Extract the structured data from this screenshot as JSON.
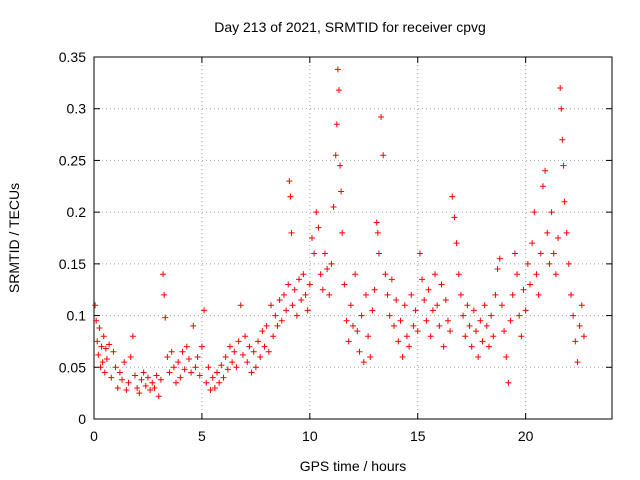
{
  "chart_data": {
    "type": "scatter",
    "title": "Day 213 of 2021, SRMTID for receiver cpvg",
    "xlabel": "GPS time / hours",
    "ylabel": "SRMTID / TECUs",
    "xlim": [
      0,
      24
    ],
    "ylim": [
      0,
      0.35
    ],
    "xticks": [
      0,
      5,
      10,
      15,
      20
    ],
    "xtick_labels": [
      "0",
      "5",
      "10",
      "15",
      "20"
    ],
    "yticks": [
      0,
      0.05,
      0.1,
      0.15,
      0.2,
      0.25,
      0.3,
      0.35
    ],
    "ytick_labels": [
      "0",
      "0.05",
      "0.1",
      "0.15",
      "0.2",
      "0.25",
      "0.3",
      "0.35"
    ],
    "grid": true,
    "marker": "plus",
    "color": "#ff0000",
    "series": [
      {
        "name": "SRMTID",
        "points": [
          [
            0.05,
            0.11
          ],
          [
            0.1,
            0.095
          ],
          [
            0.15,
            0.075
          ],
          [
            0.2,
            0.062
          ],
          [
            0.25,
            0.088
          ],
          [
            0.3,
            0.05
          ],
          [
            0.35,
            0.07
          ],
          [
            0.4,
            0.055
          ],
          [
            0.45,
            0.08
          ],
          [
            0.5,
            0.045
          ],
          [
            0.55,
            0.068
          ],
          [
            0.6,
            0.058
          ],
          [
            0.7,
            0.072
          ],
          [
            0.8,
            0.04
          ],
          [
            0.9,
            0.065
          ],
          [
            1.0,
            0.05
          ],
          [
            1.1,
            0.03
          ],
          [
            1.2,
            0.045
          ],
          [
            1.3,
            0.038
          ],
          [
            1.4,
            0.055
          ],
          [
            1.5,
            0.028
          ],
          [
            1.6,
            0.035
          ],
          [
            1.7,
            0.06
          ],
          [
            1.8,
            0.08
          ],
          [
            1.9,
            0.042
          ],
          [
            2.0,
            0.03
          ],
          [
            2.1,
            0.025
          ],
          [
            2.2,
            0.038
          ],
          [
            2.3,
            0.045
          ],
          [
            2.4,
            0.032
          ],
          [
            2.5,
            0.04
          ],
          [
            2.6,
            0.028
          ],
          [
            2.7,
            0.035
          ],
          [
            2.8,
            0.03
          ],
          [
            2.9,
            0.042
          ],
          [
            3.0,
            0.022
          ],
          [
            3.1,
            0.038
          ],
          [
            3.2,
            0.14
          ],
          [
            3.25,
            0.12
          ],
          [
            3.3,
            0.098
          ],
          [
            3.4,
            0.06
          ],
          [
            3.5,
            0.045
          ],
          [
            3.6,
            0.065
          ],
          [
            3.7,
            0.05
          ],
          [
            3.8,
            0.035
          ],
          [
            3.9,
            0.055
          ],
          [
            4.0,
            0.04
          ],
          [
            4.1,
            0.065
          ],
          [
            4.2,
            0.048
          ],
          [
            4.3,
            0.07
          ],
          [
            4.4,
            0.058
          ],
          [
            4.5,
            0.045
          ],
          [
            4.6,
            0.09
          ],
          [
            4.7,
            0.05
          ],
          [
            4.8,
            0.06
          ],
          [
            4.9,
            0.042
          ],
          [
            5.0,
            0.07
          ],
          [
            5.1,
            0.105
          ],
          [
            5.2,
            0.035
          ],
          [
            5.3,
            0.05
          ],
          [
            5.4,
            0.028
          ],
          [
            5.5,
            0.04
          ],
          [
            5.6,
            0.03
          ],
          [
            5.7,
            0.045
          ],
          [
            5.8,
            0.035
          ],
          [
            5.9,
            0.052
          ],
          [
            6.0,
            0.04
          ],
          [
            6.1,
            0.06
          ],
          [
            6.2,
            0.048
          ],
          [
            6.3,
            0.07
          ],
          [
            6.4,
            0.055
          ],
          [
            6.5,
            0.065
          ],
          [
            6.6,
            0.05
          ],
          [
            6.7,
            0.075
          ],
          [
            6.8,
            0.11
          ],
          [
            6.9,
            0.062
          ],
          [
            7.0,
            0.08
          ],
          [
            7.1,
            0.055
          ],
          [
            7.2,
            0.07
          ],
          [
            7.3,
            0.045
          ],
          [
            7.4,
            0.065
          ],
          [
            7.5,
            0.05
          ],
          [
            7.6,
            0.075
          ],
          [
            7.7,
            0.06
          ],
          [
            7.8,
            0.085
          ],
          [
            7.9,
            0.07
          ],
          [
            8.0,
            0.09
          ],
          [
            8.1,
            0.065
          ],
          [
            8.2,
            0.11
          ],
          [
            8.3,
            0.08
          ],
          [
            8.4,
            0.1
          ],
          [
            8.5,
            0.09
          ],
          [
            8.6,
            0.115
          ],
          [
            8.7,
            0.095
          ],
          [
            8.8,
            0.12
          ],
          [
            8.9,
            0.105
          ],
          [
            9.0,
            0.13
          ],
          [
            9.05,
            0.23
          ],
          [
            9.1,
            0.215
          ],
          [
            9.15,
            0.18
          ],
          [
            9.2,
            0.11
          ],
          [
            9.3,
            0.125
          ],
          [
            9.4,
            0.1
          ],
          [
            9.5,
            0.135
          ],
          [
            9.6,
            0.115
          ],
          [
            9.7,
            0.14
          ],
          [
            9.8,
            0.12
          ],
          [
            9.9,
            0.105
          ],
          [
            10.0,
            0.13
          ],
          [
            10.1,
            0.175
          ],
          [
            10.2,
            0.16
          ],
          [
            10.3,
            0.2
          ],
          [
            10.4,
            0.185
          ],
          [
            10.5,
            0.14
          ],
          [
            10.6,
            0.125
          ],
          [
            10.7,
            0.16
          ],
          [
            10.8,
            0.145
          ],
          [
            10.9,
            0.12
          ],
          [
            11.0,
            0.15
          ],
          [
            11.1,
            0.205
          ],
          [
            11.2,
            0.255
          ],
          [
            11.25,
            0.285
          ],
          [
            11.3,
            0.338
          ],
          [
            11.35,
            0.318
          ],
          [
            11.4,
            0.245
          ],
          [
            11.45,
            0.22
          ],
          [
            11.5,
            0.18
          ],
          [
            11.6,
            0.13
          ],
          [
            11.7,
            0.095
          ],
          [
            11.8,
            0.075
          ],
          [
            11.9,
            0.11
          ],
          [
            12.0,
            0.09
          ],
          [
            12.1,
            0.14
          ],
          [
            12.2,
            0.085
          ],
          [
            12.3,
            0.065
          ],
          [
            12.4,
            0.1
          ],
          [
            12.5,
            0.055
          ],
          [
            12.6,
            0.12
          ],
          [
            12.7,
            0.08
          ],
          [
            12.8,
            0.06
          ],
          [
            12.9,
            0.105
          ],
          [
            13.0,
            0.125
          ],
          [
            13.1,
            0.19
          ],
          [
            13.15,
            0.18
          ],
          [
            13.2,
            0.16
          ],
          [
            13.3,
            0.292
          ],
          [
            13.4,
            0.255
          ],
          [
            13.5,
            0.14
          ],
          [
            13.6,
            0.12
          ],
          [
            13.7,
            0.1
          ],
          [
            13.8,
            0.135
          ],
          [
            13.9,
            0.09
          ],
          [
            14.0,
            0.115
          ],
          [
            14.1,
            0.075
          ],
          [
            14.2,
            0.095
          ],
          [
            14.3,
            0.06
          ],
          [
            14.4,
            0.11
          ],
          [
            14.5,
            0.08
          ],
          [
            14.6,
            0.07
          ],
          [
            14.7,
            0.12
          ],
          [
            14.8,
            0.09
          ],
          [
            14.9,
            0.105
          ],
          [
            15.0,
            0.085
          ],
          [
            15.1,
            0.16
          ],
          [
            15.2,
            0.135
          ],
          [
            15.3,
            0.115
          ],
          [
            15.4,
            0.095
          ],
          [
            15.5,
            0.125
          ],
          [
            15.6,
            0.08
          ],
          [
            15.7,
            0.105
          ],
          [
            15.8,
            0.14
          ],
          [
            15.9,
            0.11
          ],
          [
            16.0,
            0.09
          ],
          [
            16.1,
            0.13
          ],
          [
            16.2,
            0.07
          ],
          [
            16.3,
            0.115
          ],
          [
            16.4,
            0.095
          ],
          [
            16.5,
            0.085
          ],
          [
            16.6,
            0.215
          ],
          [
            16.7,
            0.195
          ],
          [
            16.8,
            0.17
          ],
          [
            16.9,
            0.14
          ],
          [
            17.0,
            0.12
          ],
          [
            17.1,
            0.1
          ],
          [
            17.2,
            0.08
          ],
          [
            17.3,
            0.11
          ],
          [
            17.4,
            0.09
          ],
          [
            17.5,
            0.07
          ],
          [
            17.6,
            0.105
          ],
          [
            17.7,
            0.085
          ],
          [
            17.8,
            0.06
          ],
          [
            17.9,
            0.095
          ],
          [
            18.0,
            0.075
          ],
          [
            18.1,
            0.11
          ],
          [
            18.2,
            0.09
          ],
          [
            18.3,
            0.07
          ],
          [
            18.4,
            0.1
          ],
          [
            18.5,
            0.08
          ],
          [
            18.6,
            0.12
          ],
          [
            18.7,
            0.145
          ],
          [
            18.8,
            0.155
          ],
          [
            18.9,
            0.11
          ],
          [
            19.0,
            0.085
          ],
          [
            19.1,
            0.06
          ],
          [
            19.2,
            0.035
          ],
          [
            19.3,
            0.095
          ],
          [
            19.4,
            0.12
          ],
          [
            19.5,
            0.16
          ],
          [
            19.6,
            0.14
          ],
          [
            19.7,
            0.1
          ],
          [
            19.8,
            0.08
          ],
          [
            19.9,
            0.125
          ],
          [
            20.0,
            0.105
          ],
          [
            20.1,
            0.15
          ],
          [
            20.2,
            0.13
          ],
          [
            20.3,
            0.17
          ],
          [
            20.4,
            0.2
          ],
          [
            20.5,
            0.14
          ],
          [
            20.6,
            0.12
          ],
          [
            20.7,
            0.16
          ],
          [
            20.8,
            0.225
          ],
          [
            20.9,
            0.24
          ],
          [
            21.0,
            0.18
          ],
          [
            21.1,
            0.15
          ],
          [
            21.2,
            0.2
          ],
          [
            21.3,
            0.16
          ],
          [
            21.4,
            0.14
          ],
          [
            21.5,
            0.175
          ],
          [
            21.6,
            0.32
          ],
          [
            21.65,
            0.3
          ],
          [
            21.7,
            0.27
          ],
          [
            21.75,
            0.245
          ],
          [
            21.8,
            0.21
          ],
          [
            21.9,
            0.18
          ],
          [
            22.0,
            0.15
          ],
          [
            22.1,
            0.12
          ],
          [
            22.2,
            0.1
          ],
          [
            22.3,
            0.075
          ],
          [
            22.4,
            0.055
          ],
          [
            22.5,
            0.09
          ],
          [
            22.6,
            0.11
          ],
          [
            22.7,
            0.08
          ]
        ]
      }
    ]
  }
}
